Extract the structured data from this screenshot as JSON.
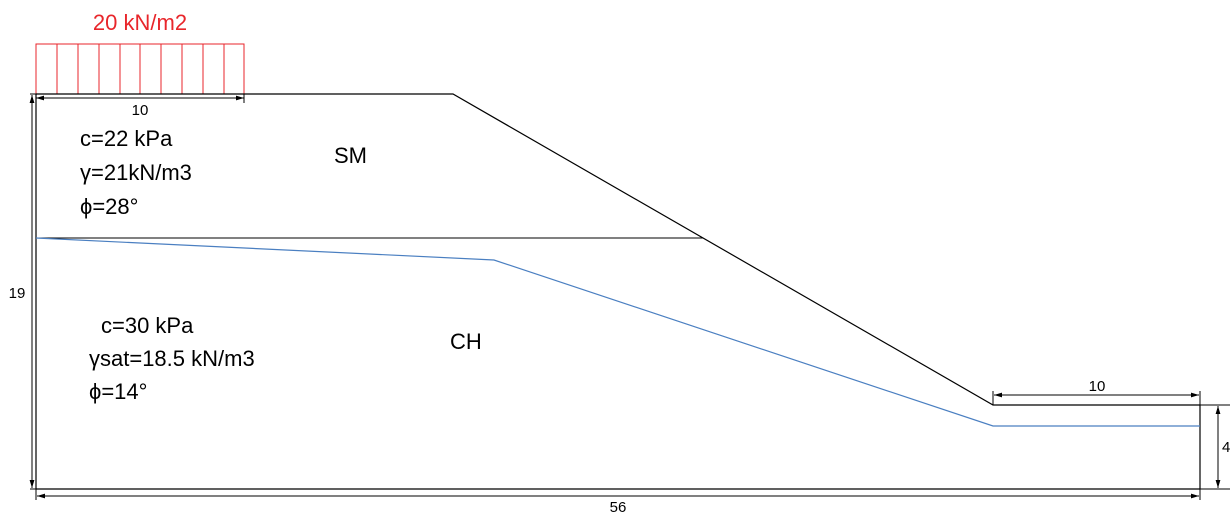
{
  "load": {
    "label": "20 kN/m2",
    "color": "#e8262b"
  },
  "dimensions": {
    "load_width": "10",
    "height": "19",
    "toe_width": "10",
    "toe_height": "4",
    "total_width": "56"
  },
  "layers": {
    "upper": {
      "name": "SM",
      "props": [
        "c=22 kPa",
        "γ=21kN/m3",
        "ϕ=28°"
      ]
    },
    "lower": {
      "name": "CH",
      "props": [
        "c=30 kPa",
        "γsat=18.5 kN/m3",
        "ϕ=14°"
      ]
    }
  },
  "colors": {
    "line": "#000000",
    "water_table": "#4a7fc1"
  }
}
